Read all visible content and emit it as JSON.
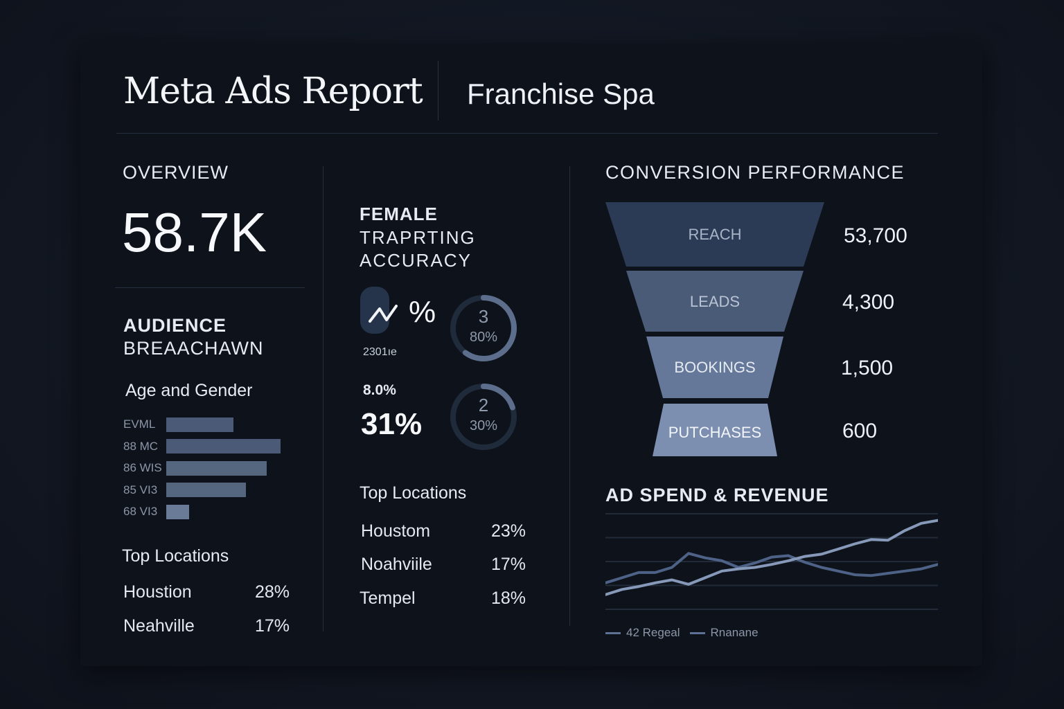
{
  "header": {
    "title": "Meta Ads Report",
    "subtitle": "Franchise Spa"
  },
  "overview": {
    "label": "OVERVIEW",
    "value": "58.7K"
  },
  "audience": {
    "heading_line1": "AUDIENCE",
    "heading_line2": "BREAACHAWN",
    "subheading": "Age and Gender",
    "bars": [
      {
        "label": "EVML",
        "value": 0.59
      },
      {
        "label": "88 MC",
        "value": 1.0
      },
      {
        "label": "86 WIS",
        "value": 0.88
      },
      {
        "label": "85 VI3",
        "value": 0.7
      },
      {
        "label": "68 VI3",
        "value": 0.2
      }
    ]
  },
  "top_locations_left": {
    "heading": "Top Locations",
    "rows": [
      {
        "name": "Houstion",
        "value": "28%"
      },
      {
        "name": "Neahville",
        "value": "17%"
      }
    ]
  },
  "targeting": {
    "heading_line1": "FEMALE",
    "heading_line2": "TRAPRTING",
    "heading_line3": "ACCURACY",
    "metric1_text": "%",
    "metric1_sub": "2301ıe",
    "ring1": {
      "top": "3",
      "bottom": "80%",
      "progress": 0.6
    },
    "metric2_small": "8.0%",
    "metric2_big": "31%",
    "ring2": {
      "top": "2",
      "bottom": "30%",
      "progress": 0.2
    }
  },
  "top_locations_mid": {
    "heading": "Top Locations",
    "rows": [
      {
        "name": "Houstom",
        "value": "23%"
      },
      {
        "name": "Noahviile",
        "value": "17%"
      },
      {
        "name": "Tempel",
        "value": "18%"
      }
    ]
  },
  "conversion": {
    "heading": "CONVERSION PERFORMANCE",
    "stages": [
      {
        "label": "REACH",
        "value": "53,700",
        "color": "#2c3b55"
      },
      {
        "label": "LEADS",
        "value": "4,300",
        "color": "#4a5b78"
      },
      {
        "label": "BOOKINGS",
        "value": "1,500",
        "color": "#66789a"
      },
      {
        "label": "PUTCHASES",
        "value": "600",
        "color": "#7d8fb0"
      }
    ]
  },
  "ad_spend": {
    "heading": "AD SPEND & REVENUE",
    "legend": [
      {
        "label": "42 Regeal",
        "color": "#5c7195"
      },
      {
        "label": "Rnanane",
        "color": "#5c7195"
      }
    ]
  },
  "chart_data": {
    "type": "line",
    "title": "AD SPEND & REVENUE",
    "x": [
      0,
      1,
      2,
      3,
      4,
      5,
      6,
      7,
      8,
      9,
      10,
      11,
      12,
      13,
      14,
      15,
      16,
      17,
      18,
      19,
      20
    ],
    "series": [
      {
        "name": "42 Regeal",
        "color": "#4d6286",
        "values": [
          36,
          43,
          50,
          50,
          57,
          76,
          70,
          66,
          57,
          63,
          71,
          73,
          64,
          57,
          52,
          47,
          46,
          49,
          52,
          55,
          61
        ]
      },
      {
        "name": "Rnanane",
        "color": "#8799b8",
        "values": [
          20,
          27,
          31,
          36,
          40,
          34,
          43,
          52,
          55,
          57,
          61,
          66,
          72,
          75,
          82,
          89,
          95,
          94,
          107,
          117,
          121
        ]
      }
    ],
    "ylim": [
      0,
      130
    ],
    "grid": true
  }
}
